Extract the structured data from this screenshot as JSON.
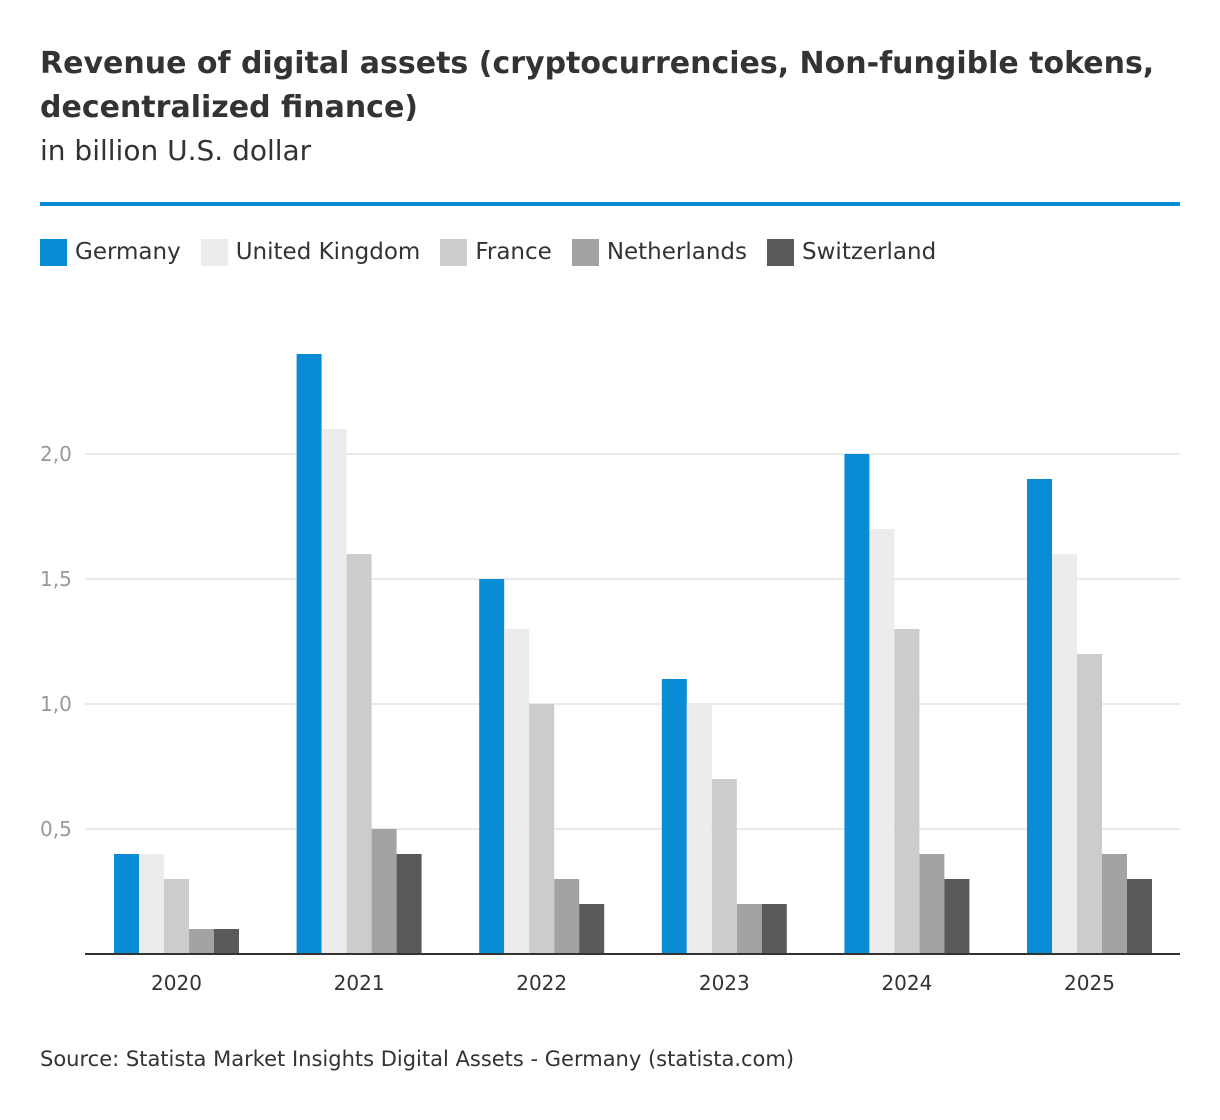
{
  "colors": {
    "accent": "#0a8bd6",
    "grid": "#e3e3e3",
    "axis": "#333333",
    "tick_text": "#999999"
  },
  "chart_data": {
    "type": "bar",
    "title": "Revenue of digital assets (cryptocurrencies, Non-fungible tokens, decentralized finance)",
    "subtitle": "in billion U.S. dollar",
    "xlabel": "",
    "ylabel": "",
    "ylim": [
      0,
      2.6
    ],
    "grid": true,
    "legend_position": "top-left",
    "categories": [
      "2020",
      "2021",
      "2022",
      "2023",
      "2024",
      "2025"
    ],
    "y_ticks": [
      0.5,
      1.0,
      1.5,
      2.0
    ],
    "y_tick_labels": [
      "0,5",
      "1,0",
      "1,5",
      "2,0"
    ],
    "series": [
      {
        "name": "Germany",
        "color": "#0a8bd6",
        "values": [
          0.4,
          2.4,
          1.5,
          1.1,
          2.0,
          1.9
        ]
      },
      {
        "name": "United Kingdom",
        "color": "#ececec",
        "values": [
          0.4,
          2.1,
          1.3,
          1.0,
          1.7,
          1.6
        ]
      },
      {
        "name": "France",
        "color": "#cccccc",
        "values": [
          0.3,
          1.6,
          1.0,
          0.7,
          1.3,
          1.2
        ]
      },
      {
        "name": "Netherlands",
        "color": "#a3a3a3",
        "values": [
          0.1,
          0.5,
          0.3,
          0.2,
          0.4,
          0.4
        ]
      },
      {
        "name": "Switzerland",
        "color": "#5a5a5a",
        "values": [
          0.1,
          0.4,
          0.2,
          0.2,
          0.3,
          0.3
        ]
      }
    ],
    "source": "Source: Statista Market Insights Digital Assets - Germany (statista.com)"
  }
}
